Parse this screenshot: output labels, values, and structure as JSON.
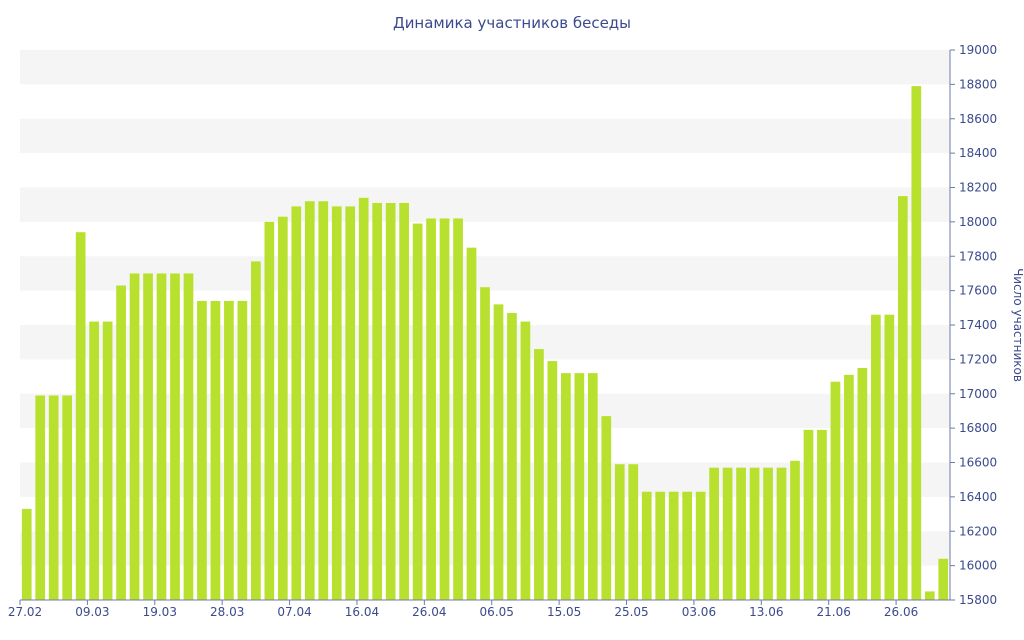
{
  "chart_data": {
    "type": "bar",
    "title": "Динамика участников беседы",
    "xlabel": "",
    "ylabel": "Число участников",
    "ylim": [
      15800,
      19000
    ],
    "y_axis_side": "right",
    "grid": "alternating horizontal bands",
    "colors": {
      "bar": "#b8e02e",
      "band": "#f5f5f5",
      "text": "#3b4a8c",
      "axis": "#6f7aa8"
    },
    "yticks": [
      15800,
      16000,
      16200,
      16400,
      16600,
      16800,
      17000,
      17200,
      17400,
      17600,
      17800,
      18000,
      18200,
      18400,
      18600,
      18800,
      19000
    ],
    "xtick_labels": [
      "27.02",
      "09.03",
      "19.03",
      "28.03",
      "07.04",
      "16.04",
      "26.04",
      "06.05",
      "15.05",
      "25.05",
      "03.06",
      "13.06",
      "21.06",
      "26.06"
    ],
    "xtick_positions": [
      0,
      5,
      10,
      15,
      20,
      25,
      30,
      35,
      40,
      45,
      50,
      55,
      60,
      65
    ],
    "values": [
      16330,
      16990,
      16990,
      16990,
      17940,
      17420,
      17420,
      17630,
      17700,
      17700,
      17700,
      17700,
      17700,
      17540,
      17540,
      17540,
      17540,
      17770,
      18000,
      18030,
      18090,
      18120,
      18120,
      18090,
      18090,
      18140,
      18110,
      18110,
      18110,
      17990,
      18020,
      18020,
      18020,
      17850,
      17620,
      17520,
      17470,
      17420,
      17260,
      17190,
      17120,
      17120,
      17120,
      16870,
      16590,
      16590,
      16430,
      16430,
      16430,
      16430,
      16430,
      16570,
      16570,
      16570,
      16570,
      16570,
      16570,
      16610,
      16790,
      16790,
      17070,
      17110,
      17150,
      17460,
      17460,
      18150,
      18790,
      15850,
      16040
    ]
  }
}
